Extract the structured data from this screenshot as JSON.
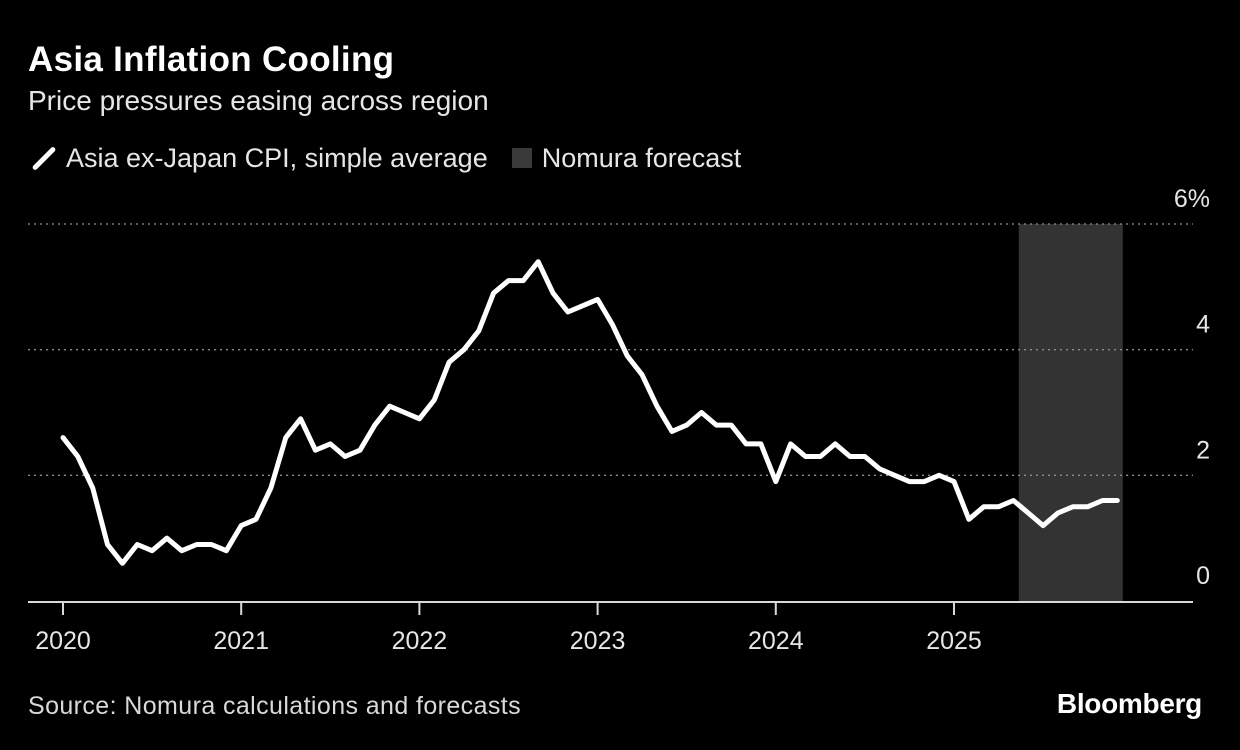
{
  "title": "Asia Inflation Cooling",
  "subtitle": "Price pressures easing across region",
  "legend": {
    "series_label": "Asia ex-Japan CPI, simple average",
    "forecast_label": "Nomura forecast"
  },
  "source": "Source: Nomura calculations and forecasts",
  "brand": "Bloomberg",
  "colors": {
    "background": "#000000",
    "line": "#ffffff",
    "forecast_band": "#333333",
    "grid": "#8c8c8c"
  },
  "chart_data": {
    "type": "line",
    "title": "Asia Inflation Cooling",
    "subtitle": "Price pressures easing across region",
    "ylim": [
      0,
      6
    ],
    "y_ticks": [
      0,
      2,
      4,
      6
    ],
    "y_tick_labels": [
      "0",
      "2",
      "4",
      "6%"
    ],
    "x_tick_labels": [
      "2020",
      "2021",
      "2022",
      "2023",
      "2024",
      "2025"
    ],
    "grid": "horizontal dotted",
    "legend_position": "top-left",
    "forecast_region": {
      "label": "Nomura forecast",
      "start": "2025-06",
      "end": "2025-12"
    },
    "series": [
      {
        "name": "Asia ex-Japan CPI, simple average",
        "x": [
          "2020-01",
          "2020-02",
          "2020-03",
          "2020-04",
          "2020-05",
          "2020-06",
          "2020-07",
          "2020-08",
          "2020-09",
          "2020-10",
          "2020-11",
          "2020-12",
          "2021-01",
          "2021-02",
          "2021-03",
          "2021-04",
          "2021-05",
          "2021-06",
          "2021-07",
          "2021-08",
          "2021-09",
          "2021-10",
          "2021-11",
          "2021-12",
          "2022-01",
          "2022-02",
          "2022-03",
          "2022-04",
          "2022-05",
          "2022-06",
          "2022-07",
          "2022-08",
          "2022-09",
          "2022-10",
          "2022-11",
          "2022-12",
          "2023-01",
          "2023-02",
          "2023-03",
          "2023-04",
          "2023-05",
          "2023-06",
          "2023-07",
          "2023-08",
          "2023-09",
          "2023-10",
          "2023-11",
          "2023-12",
          "2024-01",
          "2024-02",
          "2024-03",
          "2024-04",
          "2024-05",
          "2024-06",
          "2024-07",
          "2024-08",
          "2024-09",
          "2024-10",
          "2024-11",
          "2024-12",
          "2025-01",
          "2025-02",
          "2025-03",
          "2025-04",
          "2025-05",
          "2025-06",
          "2025-07",
          "2025-08",
          "2025-09",
          "2025-10",
          "2025-11",
          "2025-12"
        ],
        "values": [
          2.6,
          2.3,
          1.8,
          0.9,
          0.6,
          0.9,
          0.8,
          1.0,
          0.8,
          0.9,
          0.9,
          0.8,
          1.2,
          1.3,
          1.8,
          2.6,
          2.9,
          2.4,
          2.5,
          2.3,
          2.4,
          2.8,
          3.1,
          3.0,
          2.9,
          3.2,
          3.8,
          4.0,
          4.3,
          4.9,
          5.1,
          5.1,
          5.4,
          4.9,
          4.6,
          4.7,
          4.8,
          4.4,
          3.9,
          3.6,
          3.1,
          2.7,
          2.8,
          3.0,
          2.8,
          2.8,
          2.5,
          2.5,
          1.9,
          2.5,
          2.3,
          2.3,
          2.5,
          2.3,
          2.3,
          2.1,
          2.0,
          1.9,
          1.9,
          2.0,
          1.9,
          1.3,
          1.5,
          1.5,
          1.6,
          1.4,
          1.2,
          1.4,
          1.5,
          1.5,
          1.6,
          1.6
        ]
      }
    ]
  }
}
